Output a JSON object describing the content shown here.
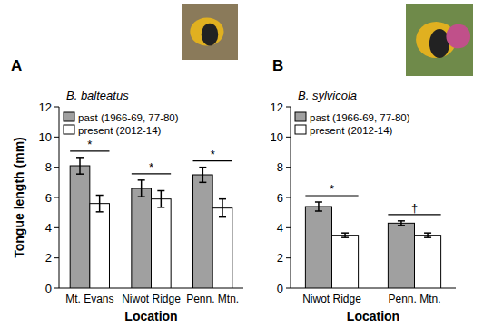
{
  "chart_data": [
    {
      "type": "bar",
      "title": "B. balteatus",
      "annotations": [
        "A"
      ],
      "x_label": "Location",
      "y_label": "Tongue length (mm)",
      "categories": [
        "Mt. Evans",
        "Niwot Ridge",
        "Penn. Mtn."
      ],
      "series": [
        {
          "name": "past (1966-69, 77-80)",
          "color": "#a0a0a0",
          "values": [
            8.1,
            6.6,
            7.5
          ],
          "errors": [
            0.55,
            0.55,
            0.5
          ]
        },
        {
          "name": "present (2012-14)",
          "color": "#ffffff",
          "values": [
            5.6,
            5.9,
            5.3
          ],
          "errors": [
            0.55,
            0.55,
            0.6
          ]
        }
      ],
      "significance": [
        "*",
        "*",
        "*"
      ],
      "ylim": [
        0,
        12
      ],
      "yticks": [
        0,
        2,
        4,
        6,
        8,
        10,
        12
      ],
      "legend": "upper-left"
    },
    {
      "type": "bar",
      "title": "B. sylvicola",
      "annotations": [
        "B"
      ],
      "x_label": "Location",
      "categories": [
        "Niwot Ridge",
        "Penn. Mtn."
      ],
      "series": [
        {
          "name": "past (1966-69, 77-80)",
          "color": "#a0a0a0",
          "values": [
            5.4,
            4.3
          ],
          "errors": [
            0.3,
            0.15
          ]
        },
        {
          "name": "present (2012-14)",
          "color": "#ffffff",
          "values": [
            3.5,
            3.5
          ],
          "errors": [
            0.15,
            0.15
          ]
        }
      ],
      "significance": [
        "*",
        "†"
      ],
      "ylim": [
        0,
        12
      ],
      "yticks": [
        0,
        2,
        4,
        6,
        8,
        10,
        12
      ],
      "legend": "upper-left"
    }
  ]
}
